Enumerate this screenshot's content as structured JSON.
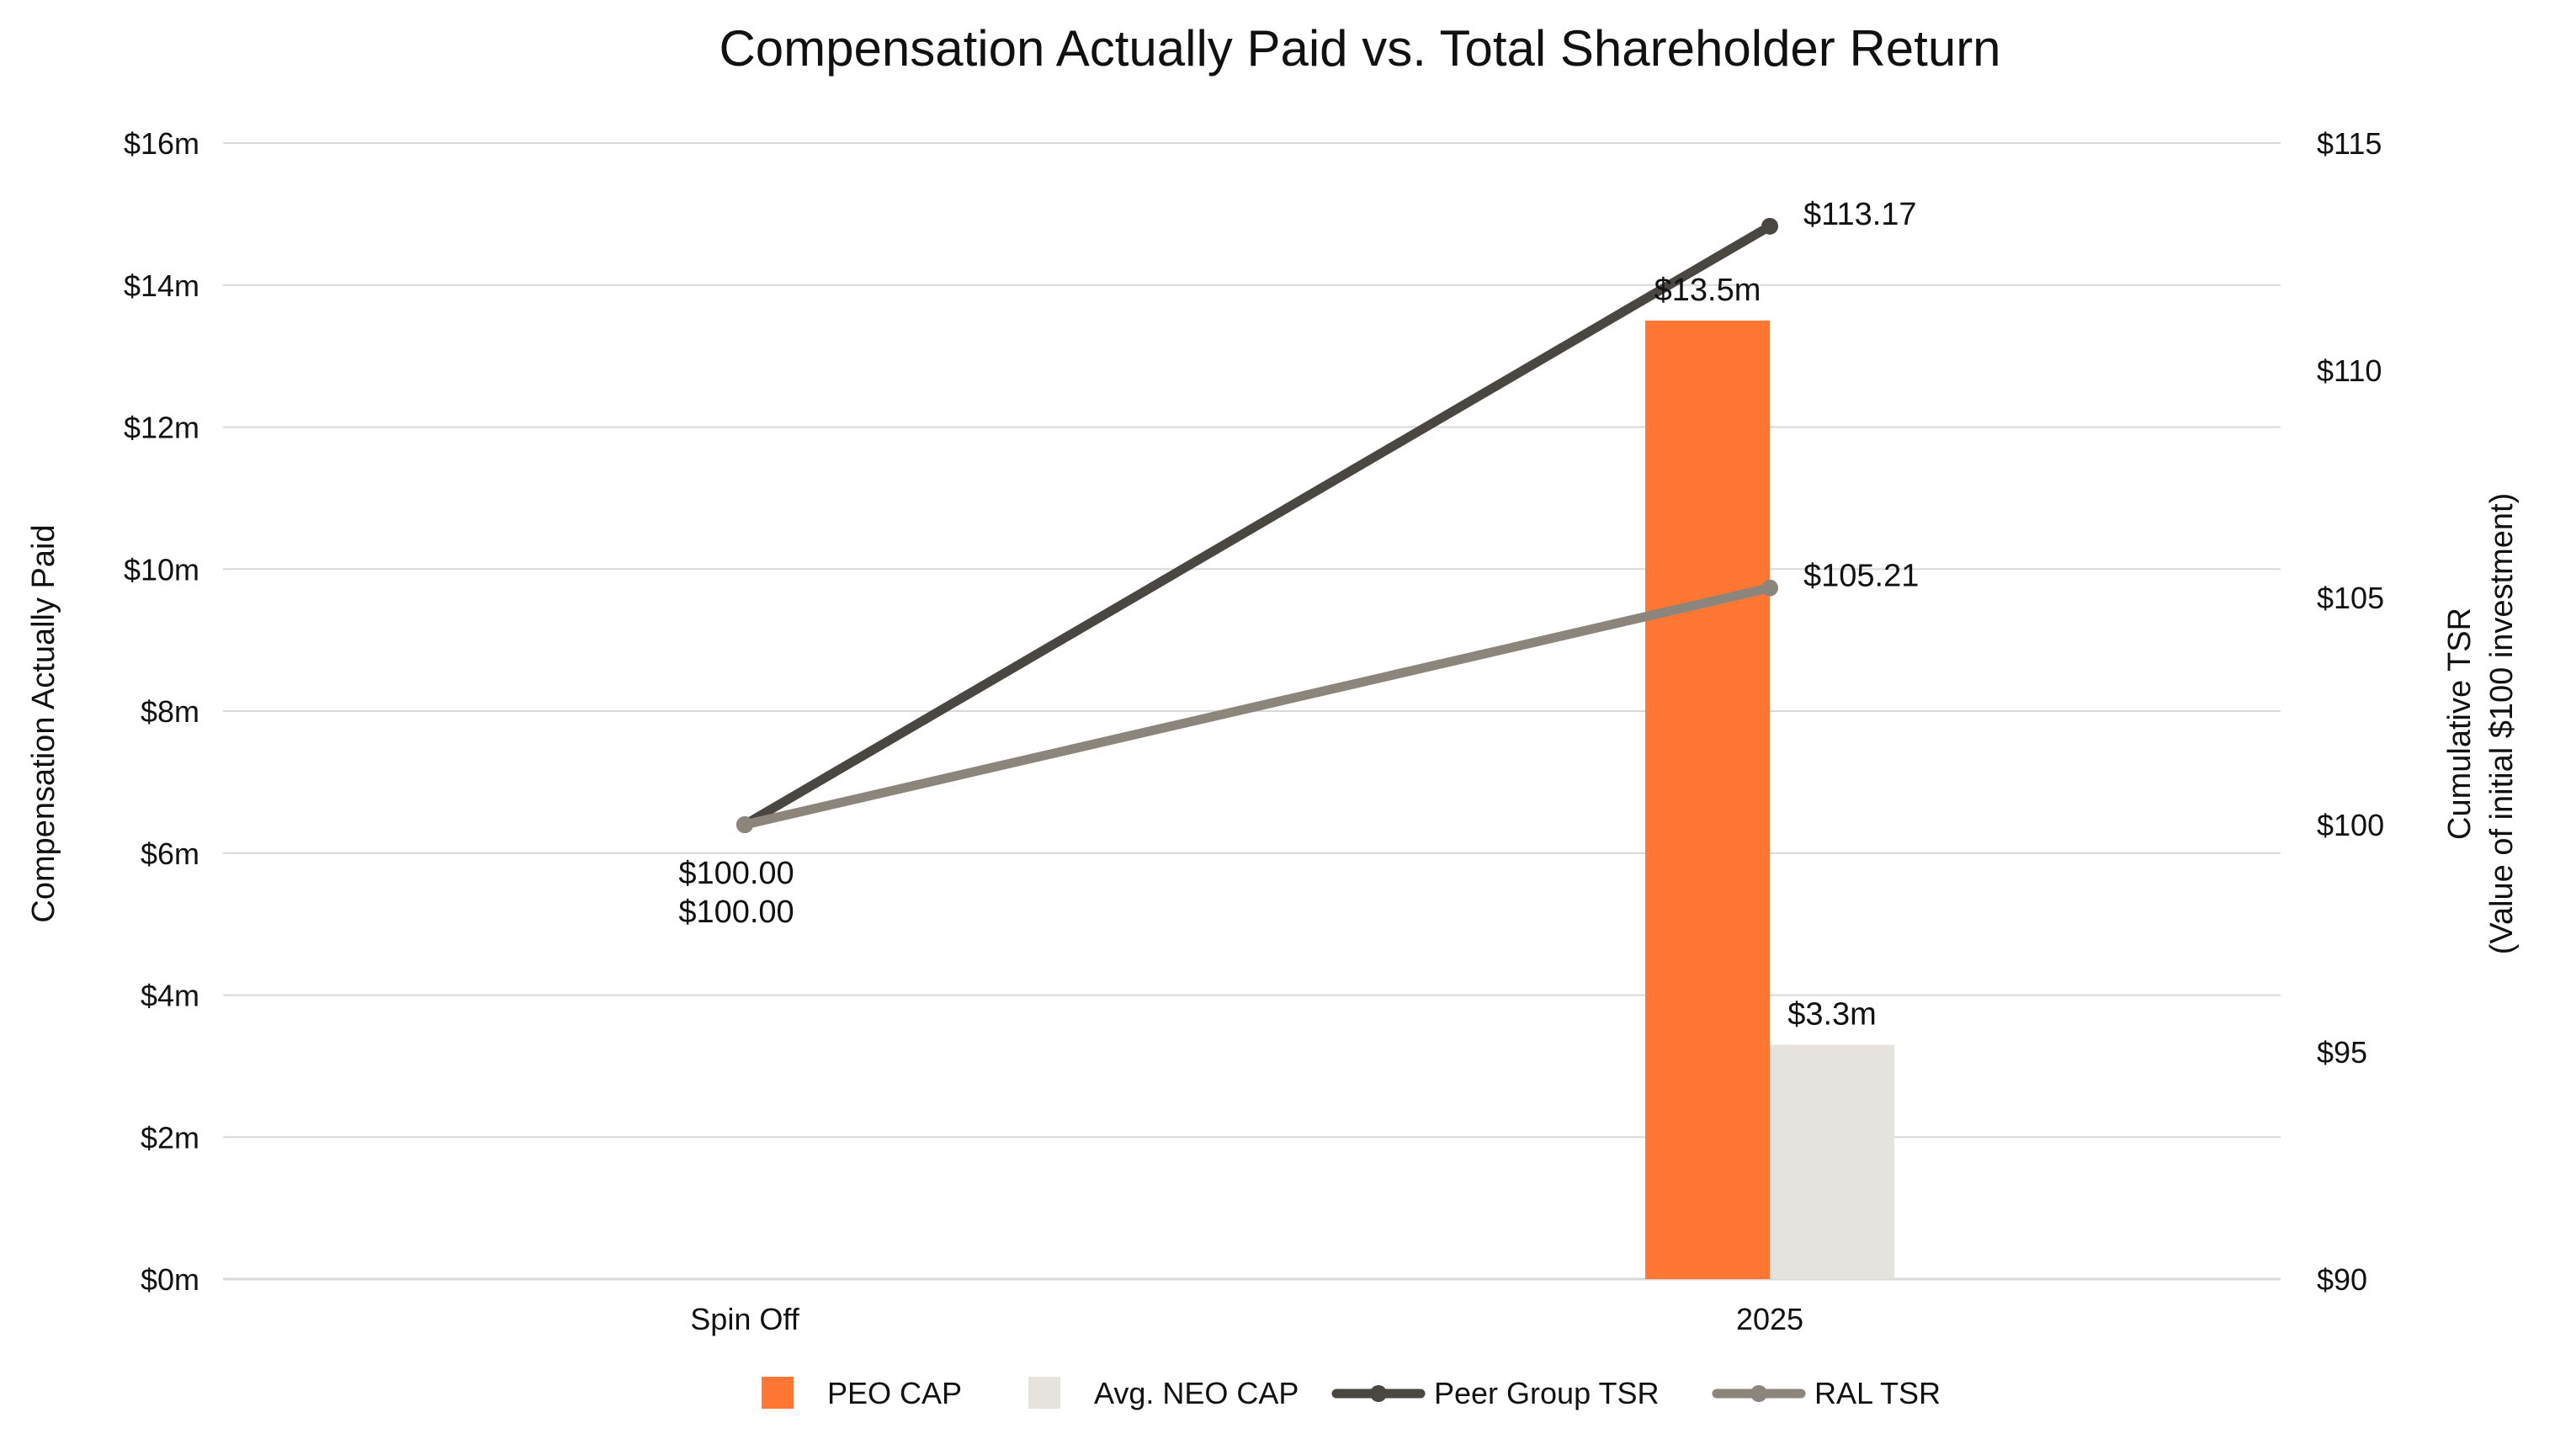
{
  "chart_data": {
    "type": "bar",
    "title": "Compensation Actually Paid vs. Total Shareholder Return",
    "categories": [
      "Spin Off",
      "2025"
    ],
    "bar_series": [
      {
        "name": "PEO CAP",
        "color": "#ff7733",
        "values": [
          null,
          13.5
        ],
        "labels": [
          null,
          "$13.5m"
        ]
      },
      {
        "name": "Avg. NEO CAP",
        "color": "#e6e3df",
        "values": [
          null,
          3.3
        ],
        "labels": [
          null,
          "$3.3m"
        ]
      }
    ],
    "line_series": [
      {
        "name": "Peer Group TSR",
        "color": "#4a4641",
        "values": [
          100.0,
          113.17
        ],
        "labels": [
          "$100.00",
          "$113.17"
        ]
      },
      {
        "name": "RAL TSR",
        "color": "#8c857c",
        "values": [
          100.0,
          105.21
        ],
        "labels": [
          "$100.00",
          "$105.21"
        ]
      }
    ],
    "y_left": {
      "label": "Compensation Actually Paid",
      "ylim": [
        0,
        16
      ],
      "ticks": [
        0,
        2,
        4,
        6,
        8,
        10,
        12,
        14,
        16
      ],
      "tick_labels": [
        "$0m",
        "$2m",
        "$4m",
        "$6m",
        "$8m",
        "$10m",
        "$12m",
        "$14m",
        "$16m"
      ]
    },
    "y_right": {
      "label_line1": "Cumulative TSR",
      "label_line2": "(Value of initial $100 investment)",
      "ylim": [
        90,
        115
      ],
      "ticks": [
        90,
        95,
        100,
        105,
        110,
        115
      ],
      "tick_labels": [
        "$90",
        "$95",
        "$100",
        "$105",
        "$110",
        "$115"
      ]
    },
    "gridlines": true,
    "gridline_color": "#d9d9d9",
    "legend_position": "bottom-center"
  }
}
